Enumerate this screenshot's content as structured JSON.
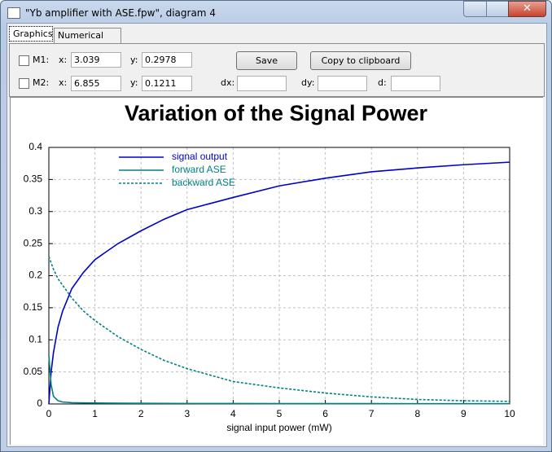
{
  "window": {
    "title": "\"Yb amplifier with ASE.fpw\", diagram 4"
  },
  "tabs": [
    "Graphics",
    "Numerical data"
  ],
  "markers": [
    {
      "label": "M1:",
      "x_label": "x:",
      "x": "3.039",
      "y_label": "y:",
      "y": "0.2978"
    },
    {
      "label": "M2:",
      "x_label": "x:",
      "x": "6.855",
      "y_label": "y:",
      "y": "0.1211"
    }
  ],
  "buttons": [
    "Save",
    "Copy to clipboard"
  ],
  "deltas": [
    "dx:",
    "dy:",
    "d:"
  ],
  "chart_data": {
    "type": "line",
    "title": "Variation of the Signal Power",
    "x_label": "signal input power (mW)",
    "x": [
      0,
      0.05,
      0.1,
      0.2,
      0.3,
      0.5,
      0.75,
      1,
      1.5,
      2,
      2.5,
      3,
      4,
      5,
      6,
      7,
      8,
      9,
      10
    ],
    "series": [
      {
        "name": "signal output",
        "color": "#0000cc",
        "linestyle": "solid",
        "values": [
          0,
          0.05,
          0.08,
          0.12,
          0.145,
          0.18,
          0.205,
          0.225,
          0.25,
          0.27,
          0.288,
          0.303,
          0.322,
          0.34,
          0.352,
          0.362,
          0.368,
          0.373,
          0.377
        ]
      },
      {
        "name": "forward ASE",
        "color": "#008080",
        "linestyle": "solid",
        "values": [
          0.075,
          0.03,
          0.012,
          0.005,
          0.003,
          0.002,
          0.0017,
          0.0015,
          0.0012,
          0.001,
          0.0009,
          0.0008,
          0.0007,
          0.0006,
          0.0005,
          0.0005,
          0.0004,
          0.0004,
          0.0004
        ]
      },
      {
        "name": "backward ASE",
        "color": "#008080",
        "linestyle": "dashed",
        "values": [
          0.23,
          0.22,
          0.21,
          0.195,
          0.185,
          0.165,
          0.145,
          0.13,
          0.105,
          0.085,
          0.068,
          0.055,
          0.035,
          0.025,
          0.017,
          0.011,
          0.007,
          0.005,
          0.004
        ]
      }
    ],
    "xlim": [
      0,
      10
    ],
    "xticks": [
      0,
      1,
      2,
      3,
      4,
      5,
      6,
      7,
      8,
      9,
      10
    ],
    "ylim": [
      0,
      0.4
    ],
    "yticks": [
      0,
      0.05,
      0.1,
      0.15,
      0.2,
      0.25,
      0.3,
      0.35,
      0.4
    ],
    "grid": true,
    "legend": "upper left"
  }
}
